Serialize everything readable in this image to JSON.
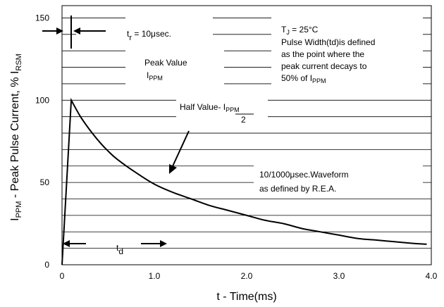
{
  "chart_data": {
    "type": "line",
    "title": "",
    "xlabel": "t - Time(ms)",
    "ylabel": {
      "main": "I",
      "main_sub": "PPM",
      "rest": " - Peak Pulse Current, % I",
      "rest_sub": "RSM"
    },
    "xlim": [
      0,
      4.0
    ],
    "ylim": [
      0,
      160
    ],
    "x_ticks": [
      {
        "value": 0,
        "label": "0"
      },
      {
        "value": 1.0,
        "label": "1.0"
      },
      {
        "value": 2.0,
        "label": "2.0"
      },
      {
        "value": 3.0,
        "label": "3.0"
      },
      {
        "value": 4.0,
        "label": "4.0"
      }
    ],
    "y_ticks": [
      {
        "value": 0,
        "label": "0"
      },
      {
        "value": 50,
        "label": "50"
      },
      {
        "value": 100,
        "label": "100"
      },
      {
        "value": 150,
        "label": "150"
      }
    ],
    "grid": "horizontal",
    "series": [
      {
        "x": [
          0,
          0.1,
          0.2,
          0.3,
          0.4,
          0.5,
          0.6,
          0.8,
          1.0,
          1.2,
          1.4,
          1.6,
          1.8,
          2.0,
          2.2,
          2.4,
          2.6,
          2.8,
          3.0,
          3.2,
          3.4,
          3.6,
          3.8,
          3.95
        ],
        "y": [
          0,
          100,
          90,
          82,
          75,
          69,
          64,
          56,
          49,
          44,
          40,
          36,
          33,
          30,
          27,
          25,
          22,
          20,
          18,
          16,
          15,
          14,
          13,
          12.5
        ]
      }
    ],
    "annotations": {
      "tr_main": "t",
      "tr_sub": "r",
      "tr_rest": " = 10μsec.",
      "peak_line1": "Peak Value",
      "peak_line2_main": "I",
      "peak_line2_sub": "PPM",
      "half_main": "Half Value- I",
      "half_sub": "PPM",
      "half_den": "2",
      "tj_main": "T",
      "tj_sub": "J",
      "tj_rest": " = 25°C",
      "pw_line1": "Pulse Width(td)is defined",
      "pw_line2": "as the point where the",
      "pw_line3": "peak current decays to",
      "pw_line4_main": "50% of I",
      "pw_line4_sub": "PPM",
      "wave_line1": "10/1000μsec.Waveform",
      "wave_line2": "as defined by R.E.A.",
      "td_main": "t",
      "td_sub": "d"
    }
  }
}
